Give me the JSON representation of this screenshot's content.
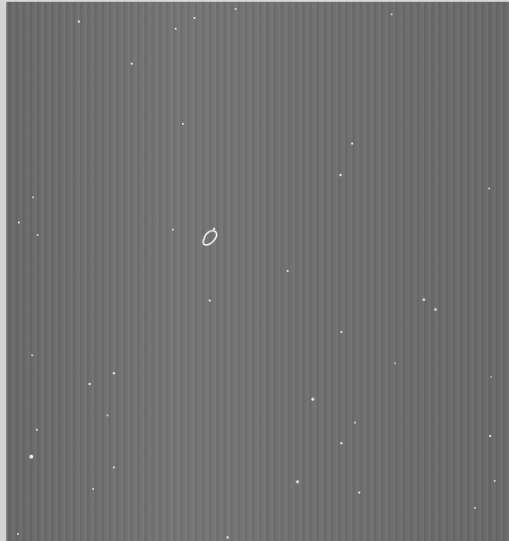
{
  "image": {
    "description_kind": "astronomical-grayscale-frame",
    "background_color": "#6e6e6e",
    "star_color": "#f2f2f2",
    "highlight_color": "#ffffff"
  }
}
